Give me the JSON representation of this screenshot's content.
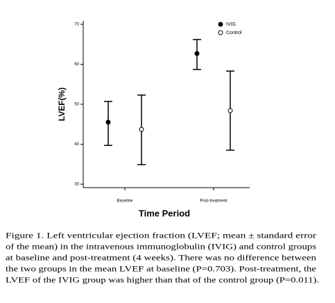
{
  "chart_data": {
    "type": "errorbar",
    "y_label": "LVEF(%)",
    "x_label": "Time Period",
    "categories": [
      "Baseline",
      "Post-treatment"
    ],
    "ylim": [
      30,
      70
    ],
    "yticks": [
      30,
      40,
      50,
      60,
      70
    ],
    "series": [
      {
        "name": "IVIG",
        "color": "#000000",
        "values": [
          45.5,
          62.7
        ],
        "lower": [
          39.7,
          58.7
        ],
        "upper": [
          50.7,
          66.2
        ]
      },
      {
        "name": "Control",
        "color": "#ffffff",
        "values": [
          43.7,
          48.4
        ],
        "lower": [
          34.9,
          38.5
        ],
        "upper": [
          52.3,
          58.3
        ]
      }
    ],
    "caption": [
      "Figure 1. Left ventricular ejection fraction (LVEF; mean ± standard error",
      "of the mean) in the intravenous immunoglobulin (IVIG) and control groups",
      "at baseline and post-treatment (4 weeks). There was no difference between",
      "the two groups in the mean LVEF at baseline (P=0.703). Post-treatment, the",
      "LVEF of the IVIG group was higher than that of the control group (P=0.011)."
    ]
  }
}
